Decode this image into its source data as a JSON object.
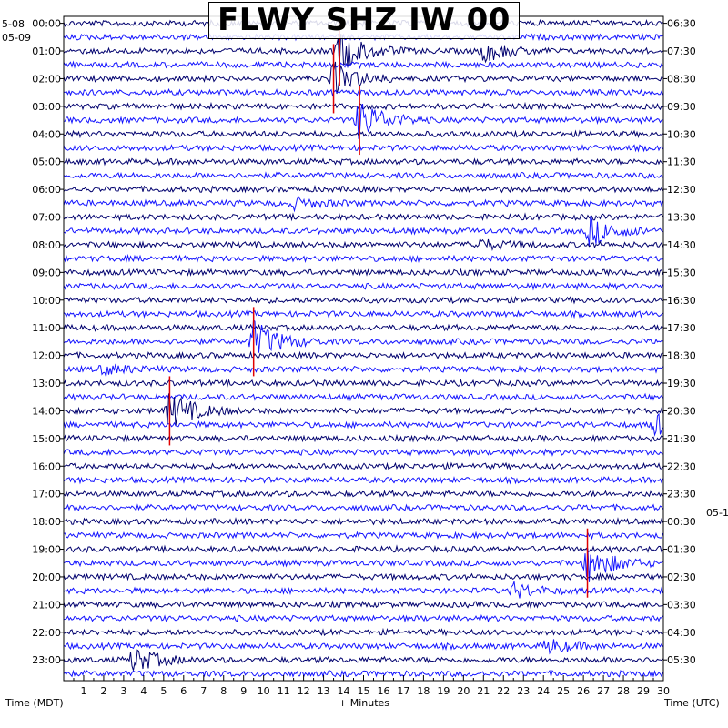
{
  "title": "FLWY SHZ IW 00",
  "chart_data": {
    "type": "line",
    "title": "FLWY SHZ IW 00",
    "xlabel": "+ Minutes",
    "left_axis_label": "Time (MDT)",
    "right_axis_label": "Time (UTC)",
    "top_left_dates": [
      "5-08",
      "05-09"
    ],
    "right_date_label": "05-1",
    "x_ticks": [
      1,
      2,
      3,
      4,
      5,
      6,
      7,
      8,
      9,
      10,
      11,
      12,
      13,
      14,
      15,
      16,
      17,
      18,
      19,
      20,
      21,
      22,
      23,
      24,
      25,
      26,
      27,
      28,
      29,
      30
    ],
    "xlim": [
      0,
      30
    ],
    "left_hour_labels": [
      "00:00",
      "01:00",
      "02:00",
      "03:00",
      "04:00",
      "05:00",
      "06:00",
      "07:00",
      "08:00",
      "09:00",
      "10:00",
      "11:00",
      "12:00",
      "13:00",
      "14:00",
      "15:00",
      "16:00",
      "17:00",
      "18:00",
      "19:00",
      "20:00",
      "21:00",
      "22:00",
      "23:00"
    ],
    "right_hour_labels": [
      "06:30",
      "07:30",
      "08:30",
      "09:30",
      "10:30",
      "11:30",
      "12:30",
      "13:30",
      "14:30",
      "15:30",
      "16:30",
      "17:30",
      "18:30",
      "19:30",
      "20:30",
      "21:30",
      "22:30",
      "23:30",
      "00:30",
      "01:30",
      "02:30",
      "03:30",
      "04:30",
      "05:30"
    ],
    "trace_colors": [
      "#00006e",
      "#1414ff"
    ],
    "pick_color": "#e00000",
    "rows_per_hour": 2,
    "events": [
      {
        "hour": 1.0,
        "minute": 13.8,
        "strength": 1.0
      },
      {
        "hour": 1.0,
        "minute": 21.0,
        "strength": 0.5
      },
      {
        "hour": 2.0,
        "minute": 13.5,
        "strength": 0.8
      },
      {
        "hour": 3.5,
        "minute": 14.8,
        "strength": 1.0
      },
      {
        "hour": 6.5,
        "minute": 11.5,
        "strength": 0.25
      },
      {
        "hour": 7.5,
        "minute": 26.3,
        "strength": 0.7
      },
      {
        "hour": 8.0,
        "minute": 20.5,
        "strength": 0.3
      },
      {
        "hour": 11.5,
        "minute": 9.5,
        "strength": 1.0
      },
      {
        "hour": 12.5,
        "minute": 2.0,
        "strength": 0.25
      },
      {
        "hour": 14.0,
        "minute": 5.3,
        "strength": 0.9
      },
      {
        "hour": 14.5,
        "minute": 29.6,
        "strength": 0.5
      },
      {
        "hour": 19.5,
        "minute": 26.2,
        "strength": 0.9
      },
      {
        "hour": 20.5,
        "minute": 22.5,
        "strength": 0.35
      },
      {
        "hour": 22.5,
        "minute": 24.2,
        "strength": 0.35
      },
      {
        "hour": 23.0,
        "minute": 3.5,
        "strength": 0.6
      }
    ]
  }
}
